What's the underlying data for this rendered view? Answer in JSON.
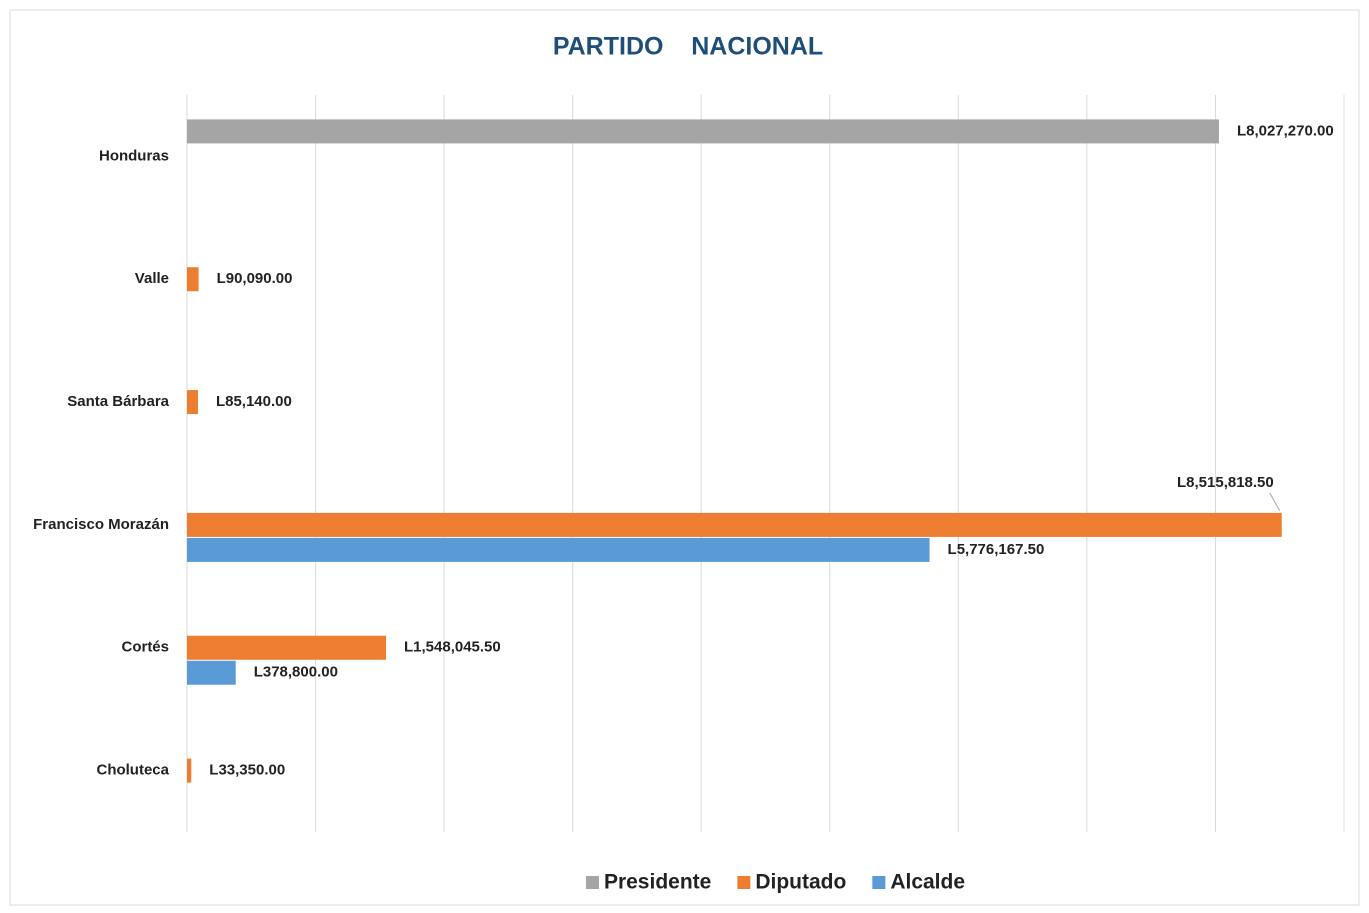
{
  "chart_data": {
    "type": "barh",
    "title": "PARTIDO    NACIONAL",
    "categories": [
      "Honduras",
      "Valle",
      "Santa Bárbara",
      "Francisco Morazán",
      "Cortés",
      "Choluteca"
    ],
    "series": [
      {
        "name": "Presidente",
        "color": "#a5a5a5",
        "values": [
          8027270,
          null,
          null,
          null,
          null,
          null
        ],
        "value_labels": [
          "L8,027,270.00",
          null,
          null,
          null,
          null,
          null
        ]
      },
      {
        "name": "Diputado",
        "color": "#ed7d31",
        "values": [
          null,
          90090,
          85140,
          8515818.5,
          1548045.5,
          33350
        ],
        "value_labels": [
          null,
          "L90,090.00",
          "L85,140.00",
          "L8,515,818.50",
          "L1,548,045.50",
          "L33,350.00"
        ]
      },
      {
        "name": "Alcalde",
        "color": "#5b9bd5",
        "values": [
          null,
          null,
          null,
          5776167.5,
          378800,
          null
        ],
        "value_labels": [
          null,
          null,
          null,
          "L5,776,167.50",
          "L378,800.00",
          null
        ]
      }
    ],
    "xlim": [
      0,
      9000000
    ],
    "xticks": [
      0,
      1000000,
      2000000,
      3000000,
      4000000,
      5000000,
      6000000,
      7000000,
      8000000,
      9000000
    ],
    "grid": true,
    "legend": "bottom"
  }
}
